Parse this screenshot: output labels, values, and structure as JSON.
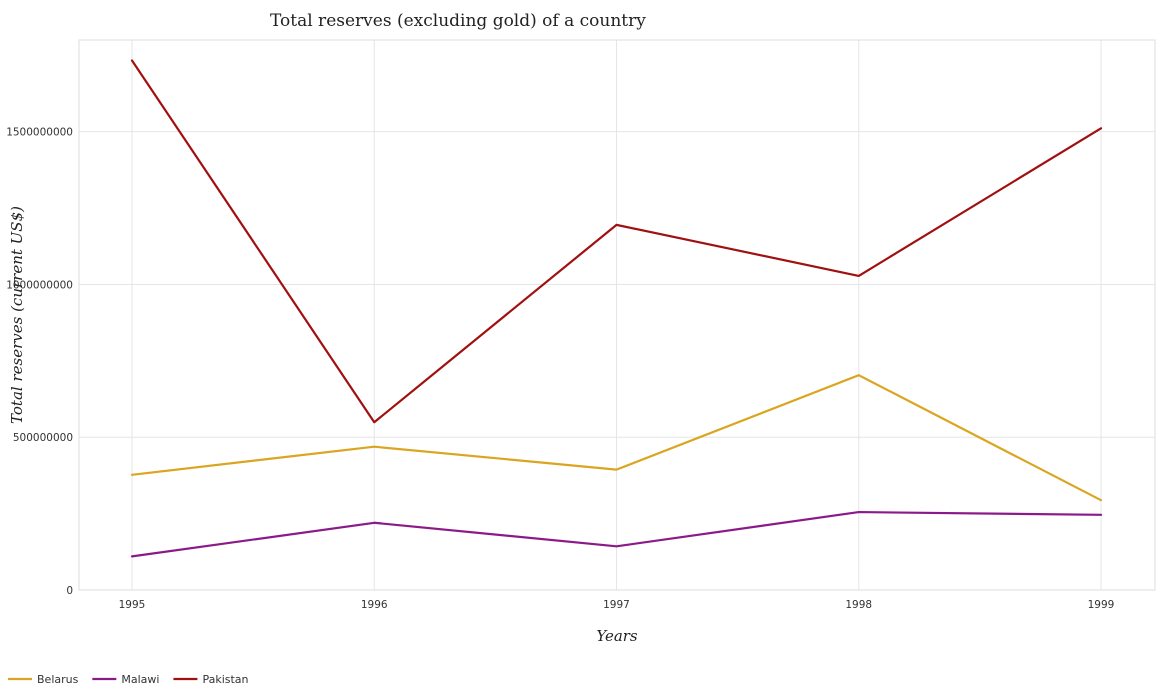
{
  "chart_data": {
    "type": "line",
    "title": "Total reserves (excluding gold) of a country",
    "xlabel": "Years",
    "ylabel": "Total reserves (current US$)",
    "categories": [
      "1995",
      "1996",
      "1997",
      "1998",
      "1999"
    ],
    "ylim": [
      0,
      1800000000
    ],
    "yticks": [
      0,
      500000000,
      1000000000,
      1500000000
    ],
    "ytick_labels": [
      "0",
      "500000000",
      "1000000000",
      "1500000000"
    ],
    "grid": true,
    "legend_position": "bottom-left",
    "series": [
      {
        "name": "Belarus",
        "color": "#DAA520",
        "values": [
          377000000,
          469000000,
          394000000,
          703000000,
          294000000
        ]
      },
      {
        "name": "Malawi",
        "color": "#8B1A89",
        "values": [
          110000000,
          220000000,
          143000000,
          255000000,
          246000000
        ]
      },
      {
        "name": "Pakistan",
        "color": "#A01010",
        "values": [
          1733000000,
          549000000,
          1195000000,
          1028000000,
          1511000000
        ]
      }
    ]
  }
}
